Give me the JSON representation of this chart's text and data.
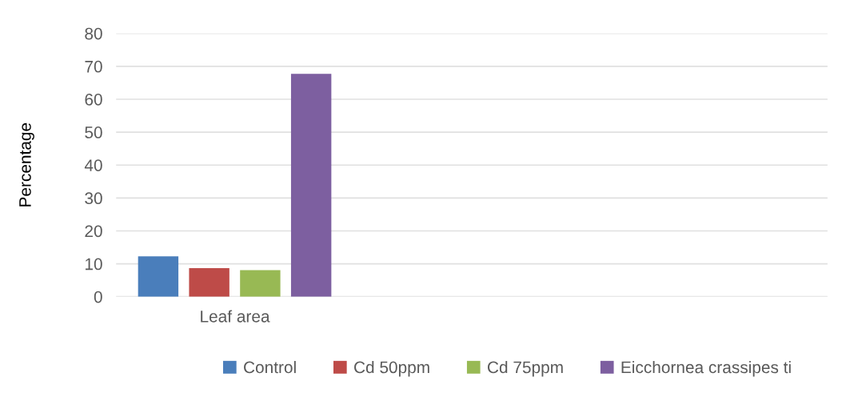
{
  "chart_data": {
    "type": "bar",
    "ylabel": "Percentage",
    "categories": [
      "Leaf area",
      null,
      null
    ],
    "series": [
      {
        "name": "Control",
        "color": "#4a7ebb",
        "values": [
          12.3,
          null,
          null
        ]
      },
      {
        "name": "Cd 50ppm",
        "color": "#be4b48",
        "values": [
          8.7,
          null,
          null
        ]
      },
      {
        "name": "Cd 75ppm",
        "color": "#98b954",
        "values": [
          8.1,
          null,
          null
        ]
      },
      {
        "name": "Eicchornea crassipes ti",
        "color": "#7d5fa0",
        "values": [
          67.7,
          null,
          null
        ]
      }
    ],
    "ylim": [
      0,
      80
    ],
    "yticks": [
      0,
      10,
      20,
      30,
      40,
      50,
      60,
      70,
      80
    ],
    "grid": "y",
    "legend": "bottom"
  }
}
